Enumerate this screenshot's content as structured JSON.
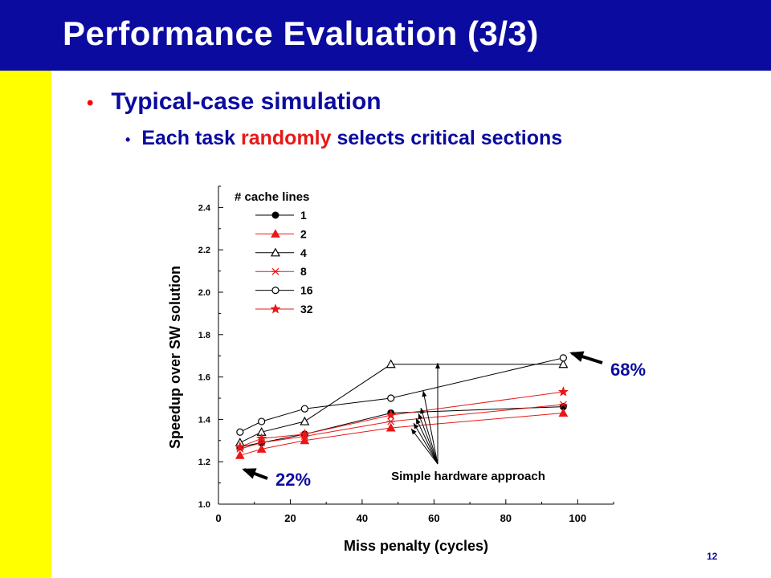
{
  "slide": {
    "title": "Performance Evaluation (3/3)",
    "bullet1": "Typical-case simulation",
    "bullet2_pre": "Each task ",
    "bullet2_highlight": "randomly",
    "bullet2_post": " selects critical sections",
    "page_number": "12"
  },
  "colors": {
    "title_bar": "#0b0ba0",
    "stripe": "#ffff00",
    "highlight": "#e81818",
    "series_black": "#000000",
    "series_red": "#e81818"
  },
  "chart_data": {
    "type": "line",
    "xlabel": "Miss penalty (cycles)",
    "ylabel": "Speedup over SW solution",
    "xlim": [
      0,
      110
    ],
    "ylim": [
      1.0,
      2.5
    ],
    "xticks": [
      0,
      20,
      40,
      60,
      80,
      100
    ],
    "yticks": [
      1.0,
      1.2,
      1.4,
      1.6,
      1.8,
      2.0,
      2.2,
      2.4
    ],
    "legend_title": "# cache lines",
    "legend_position": "top-left",
    "x": [
      6,
      12,
      24,
      48,
      96
    ],
    "series": [
      {
        "name": "1",
        "marker": "filled-circle",
        "color": "#000000",
        "values": [
          1.27,
          1.29,
          1.33,
          1.43,
          1.46
        ]
      },
      {
        "name": "2",
        "marker": "filled-triangle",
        "color": "#e81818",
        "values": [
          1.23,
          1.26,
          1.3,
          1.36,
          1.43
        ]
      },
      {
        "name": "4",
        "marker": "open-triangle",
        "color": "#000000",
        "values": [
          1.29,
          1.34,
          1.39,
          1.66,
          1.66
        ]
      },
      {
        "name": "8",
        "marker": "asterisk",
        "color": "#e81818",
        "values": [
          1.26,
          1.29,
          1.32,
          1.39,
          1.47
        ]
      },
      {
        "name": "16",
        "marker": "open-circle",
        "color": "#000000",
        "values": [
          1.34,
          1.39,
          1.45,
          1.5,
          1.69
        ]
      },
      {
        "name": "32",
        "marker": "star",
        "color": "#e81818",
        "values": [
          1.27,
          1.31,
          1.33,
          1.42,
          1.53
        ]
      }
    ],
    "annotations": {
      "top_value": "68%",
      "bottom_value": "22%",
      "simple_hw": "Simple hardware approach"
    }
  }
}
